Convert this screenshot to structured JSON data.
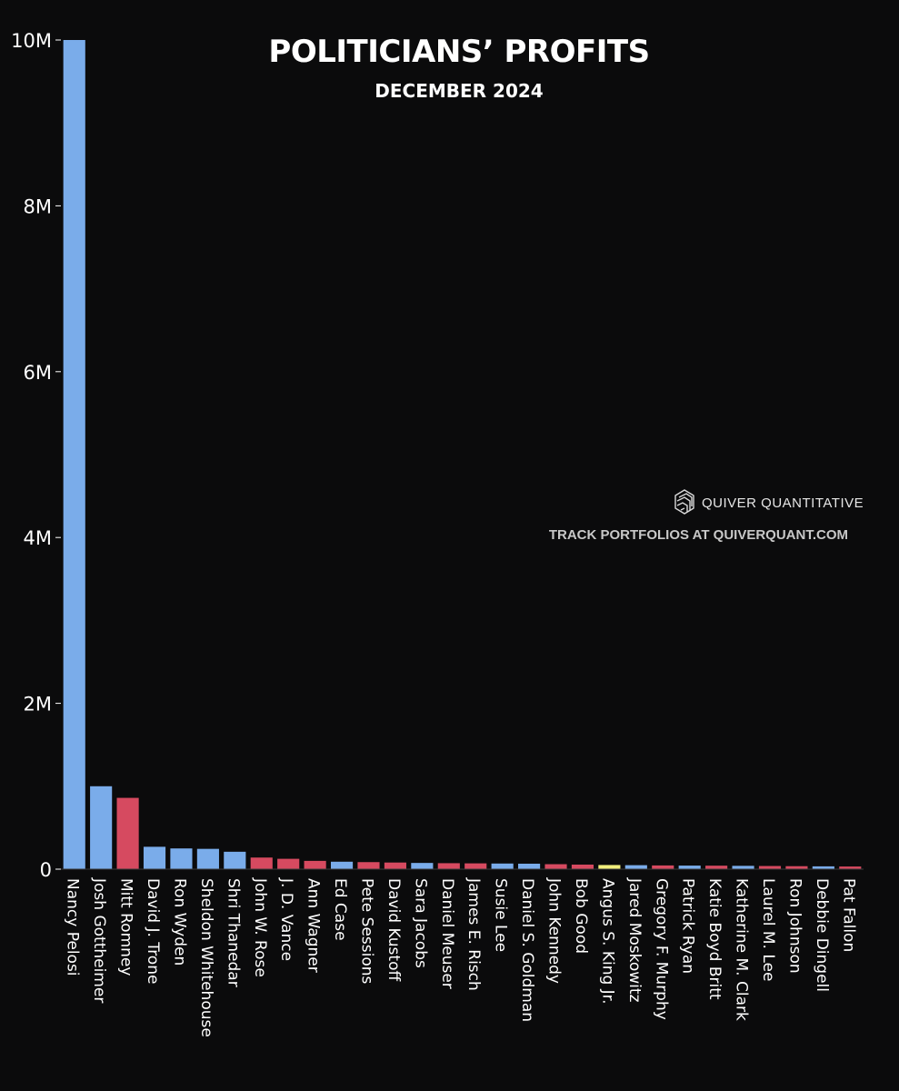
{
  "colors": {
    "background": "#0b0b0c",
    "democrat": "#7aacea",
    "republican": "#d64a60",
    "independent": "#f2ef7c",
    "text": "#ffffff",
    "axis": "#ffffff"
  },
  "watermark": {
    "brand": "QUIVER QUANTITATIVE",
    "tagline": "TRACK PORTFOLIOS AT QUIVERQUANT.COM",
    "icon": "quiver-logo-icon"
  },
  "chart_data": {
    "type": "bar",
    "title": "POLITICIANS’ PROFITS",
    "subtitle": "DECEMBER 2024",
    "xlabel": "",
    "ylabel": "",
    "ylim": [
      0,
      10000000
    ],
    "yticks": [
      {
        "value": 0,
        "label": "0"
      },
      {
        "value": 2000000,
        "label": "2M"
      },
      {
        "value": 4000000,
        "label": "4M"
      },
      {
        "value": 6000000,
        "label": "6M"
      },
      {
        "value": 8000000,
        "label": "8M"
      },
      {
        "value": 10000000,
        "label": "10M"
      }
    ],
    "grid": false,
    "legend": "none",
    "categories": [
      "Nancy Pelosi",
      "Josh Gottheimer",
      "Mitt Romney",
      "David J. Trone",
      "Ron Wyden",
      "Sheldon Whitehouse",
      "Shri Thanedar",
      "John W. Rose",
      "J. D. Vance",
      "Ann Wagner",
      "Ed Case",
      "Pete Sessions",
      "David Kustoff",
      "Sara Jacobs",
      "Daniel Meuser",
      "James E. Risch",
      "Susie Lee",
      "Daniel S. Goldman",
      "John Kennedy",
      "Bob Good",
      "Angus S. King Jr.",
      "Jared Moskowitz",
      "Gregory F. Murphy",
      "Patrick Ryan",
      "Katie Boyd Britt",
      "Katherine M. Clark",
      "Laurel M. Lee",
      "Ron Johnson",
      "Debbie Dingell",
      "Pat Fallon"
    ],
    "values": [
      10000000,
      1000000,
      860000,
      270000,
      250000,
      245000,
      210000,
      140000,
      125000,
      100000,
      90000,
      85000,
      80000,
      75000,
      72000,
      70000,
      68000,
      66000,
      60000,
      55000,
      50000,
      48000,
      45000,
      43000,
      42000,
      40000,
      38000,
      36000,
      34000,
      32000
    ],
    "parties": [
      "D",
      "D",
      "R",
      "D",
      "D",
      "D",
      "D",
      "R",
      "R",
      "R",
      "D",
      "R",
      "R",
      "D",
      "R",
      "R",
      "D",
      "D",
      "R",
      "R",
      "I",
      "D",
      "R",
      "D",
      "R",
      "D",
      "R",
      "R",
      "D",
      "R"
    ]
  }
}
